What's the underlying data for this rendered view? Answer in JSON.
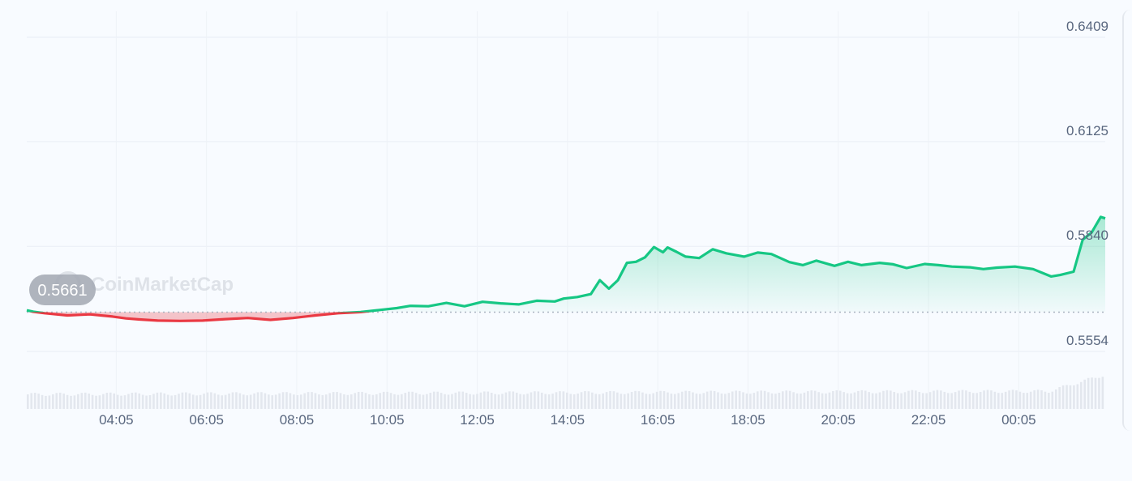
{
  "watermark": "CoinMarketCap",
  "chart_data": {
    "type": "area",
    "y_ticks": [
      "0.6409",
      "0.6125",
      "0.5840",
      "0.5554"
    ],
    "x_ticks": [
      "04:05",
      "06:05",
      "08:05",
      "10:05",
      "12:05",
      "14:05",
      "16:05",
      "18:05",
      "20:05",
      "22:05",
      "00:05"
    ],
    "reference_value": 0.5661,
    "reference_label": "0.5661",
    "ylim": [
      0.5554,
      0.6409
    ],
    "xlim": [
      2.1,
      26.0
    ],
    "x_unit": "hours",
    "series": [
      {
        "x": [
          2.1,
          2.25,
          2.5,
          3.0,
          3.5,
          4.0,
          4.3,
          4.6,
          5.0,
          5.5,
          6.0,
          6.5,
          7.0,
          7.5,
          8.0,
          8.5,
          9.0,
          9.5,
          10.0,
          10.3,
          10.6,
          11.0,
          11.4,
          11.8,
          12.2,
          12.6,
          13.0,
          13.4,
          13.8,
          14.0,
          14.3,
          14.6,
          14.8,
          15.0,
          15.2,
          15.4,
          15.6,
          15.8,
          16.0,
          16.2,
          16.3,
          16.5,
          16.7,
          17.0,
          17.3,
          17.6,
          18.0,
          18.3,
          18.6,
          19.0,
          19.3,
          19.6,
          20.0,
          20.3,
          20.6,
          21.0,
          21.3,
          21.6,
          22.0,
          22.3,
          22.6,
          23.0,
          23.3,
          23.6,
          24.0,
          24.4,
          24.8,
          25.0,
          25.3,
          25.5,
          25.7,
          25.9,
          26.0
        ],
        "values": [
          0.5666,
          0.5662,
          0.5658,
          0.5652,
          0.5655,
          0.5649,
          0.5644,
          0.5641,
          0.5638,
          0.5637,
          0.5638,
          0.5642,
          0.5645,
          0.564,
          0.5645,
          0.5652,
          0.5658,
          0.5661,
          0.5668,
          0.5672,
          0.5678,
          0.5677,
          0.5686,
          0.5677,
          0.5689,
          0.5685,
          0.5682,
          0.5692,
          0.569,
          0.5698,
          0.5702,
          0.571,
          0.5748,
          0.5725,
          0.5748,
          0.5795,
          0.5798,
          0.581,
          0.5838,
          0.5824,
          0.5837,
          0.5825,
          0.5812,
          0.5808,
          0.5832,
          0.5821,
          0.5812,
          0.5823,
          0.5819,
          0.5797,
          0.5789,
          0.5801,
          0.5787,
          0.5798,
          0.5789,
          0.5795,
          0.5791,
          0.5781,
          0.5792,
          0.5789,
          0.5785,
          0.5783,
          0.5778,
          0.5782,
          0.5785,
          0.5778,
          0.5758,
          0.5762,
          0.5771,
          0.5858,
          0.5878,
          0.592,
          0.5916
        ]
      }
    ],
    "up_color": "#16c784",
    "down_color": "#ea3943",
    "grid": true
  }
}
